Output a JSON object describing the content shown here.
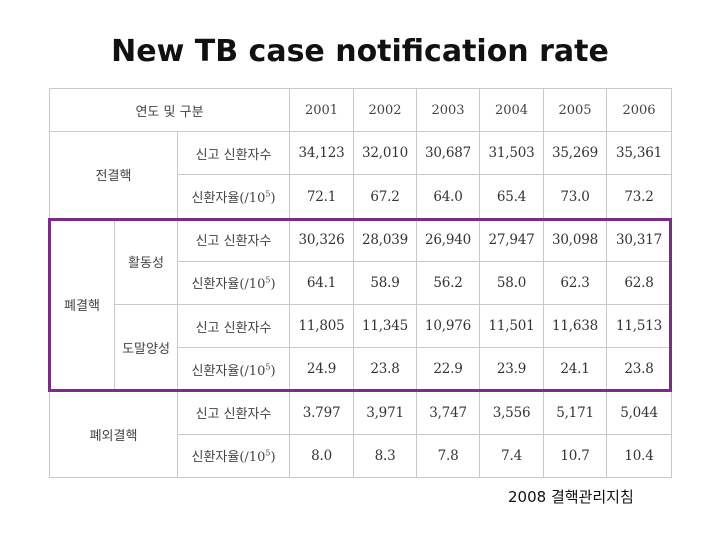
{
  "title": "New TB case notification rate",
  "table": {
    "header_label": "연도 및 구분",
    "years": [
      "2001",
      "2002",
      "2003",
      "2004",
      "2005",
      "2006"
    ],
    "metric_count": "신고 신환자수",
    "metric_rate_prefix": "신환자율(/10",
    "metric_rate_exp": "5",
    "metric_rate_suffix": ")",
    "groups": {
      "all": "전결핵",
      "pulmonary": "폐결핵",
      "active": "활동성",
      "smear": "도말양성",
      "extra": "폐외결핵"
    },
    "rows": {
      "all_count": [
        "34,123",
        "32,010",
        "30,687",
        "31,503",
        "35,269",
        "35,361"
      ],
      "all_rate": [
        "72.1",
        "67.2",
        "64.0",
        "65.4",
        "73.0",
        "73.2"
      ],
      "active_count": [
        "30,326",
        "28,039",
        "26,940",
        "27,947",
        "30,098",
        "30,317"
      ],
      "active_rate": [
        "64.1",
        "58.9",
        "56.2",
        "58.0",
        "62.3",
        "62.8"
      ],
      "smear_count": [
        "11,805",
        "11,345",
        "10,976",
        "11,501",
        "11,638",
        "11,513"
      ],
      "smear_rate": [
        "24.9",
        "23.8",
        "22.9",
        "23.9",
        "24.1",
        "23.8"
      ],
      "extra_count": [
        "3.797",
        "3,971",
        "3,747",
        "3,556",
        "5,171",
        "5,044"
      ],
      "extra_rate": [
        "8.0",
        "8.3",
        "7.8",
        "7.4",
        "10.7",
        "10.4"
      ]
    }
  },
  "source": "2008 결핵관리지침",
  "colors": {
    "highlight": "#7b2c86",
    "grid": "#c8c8c8"
  }
}
